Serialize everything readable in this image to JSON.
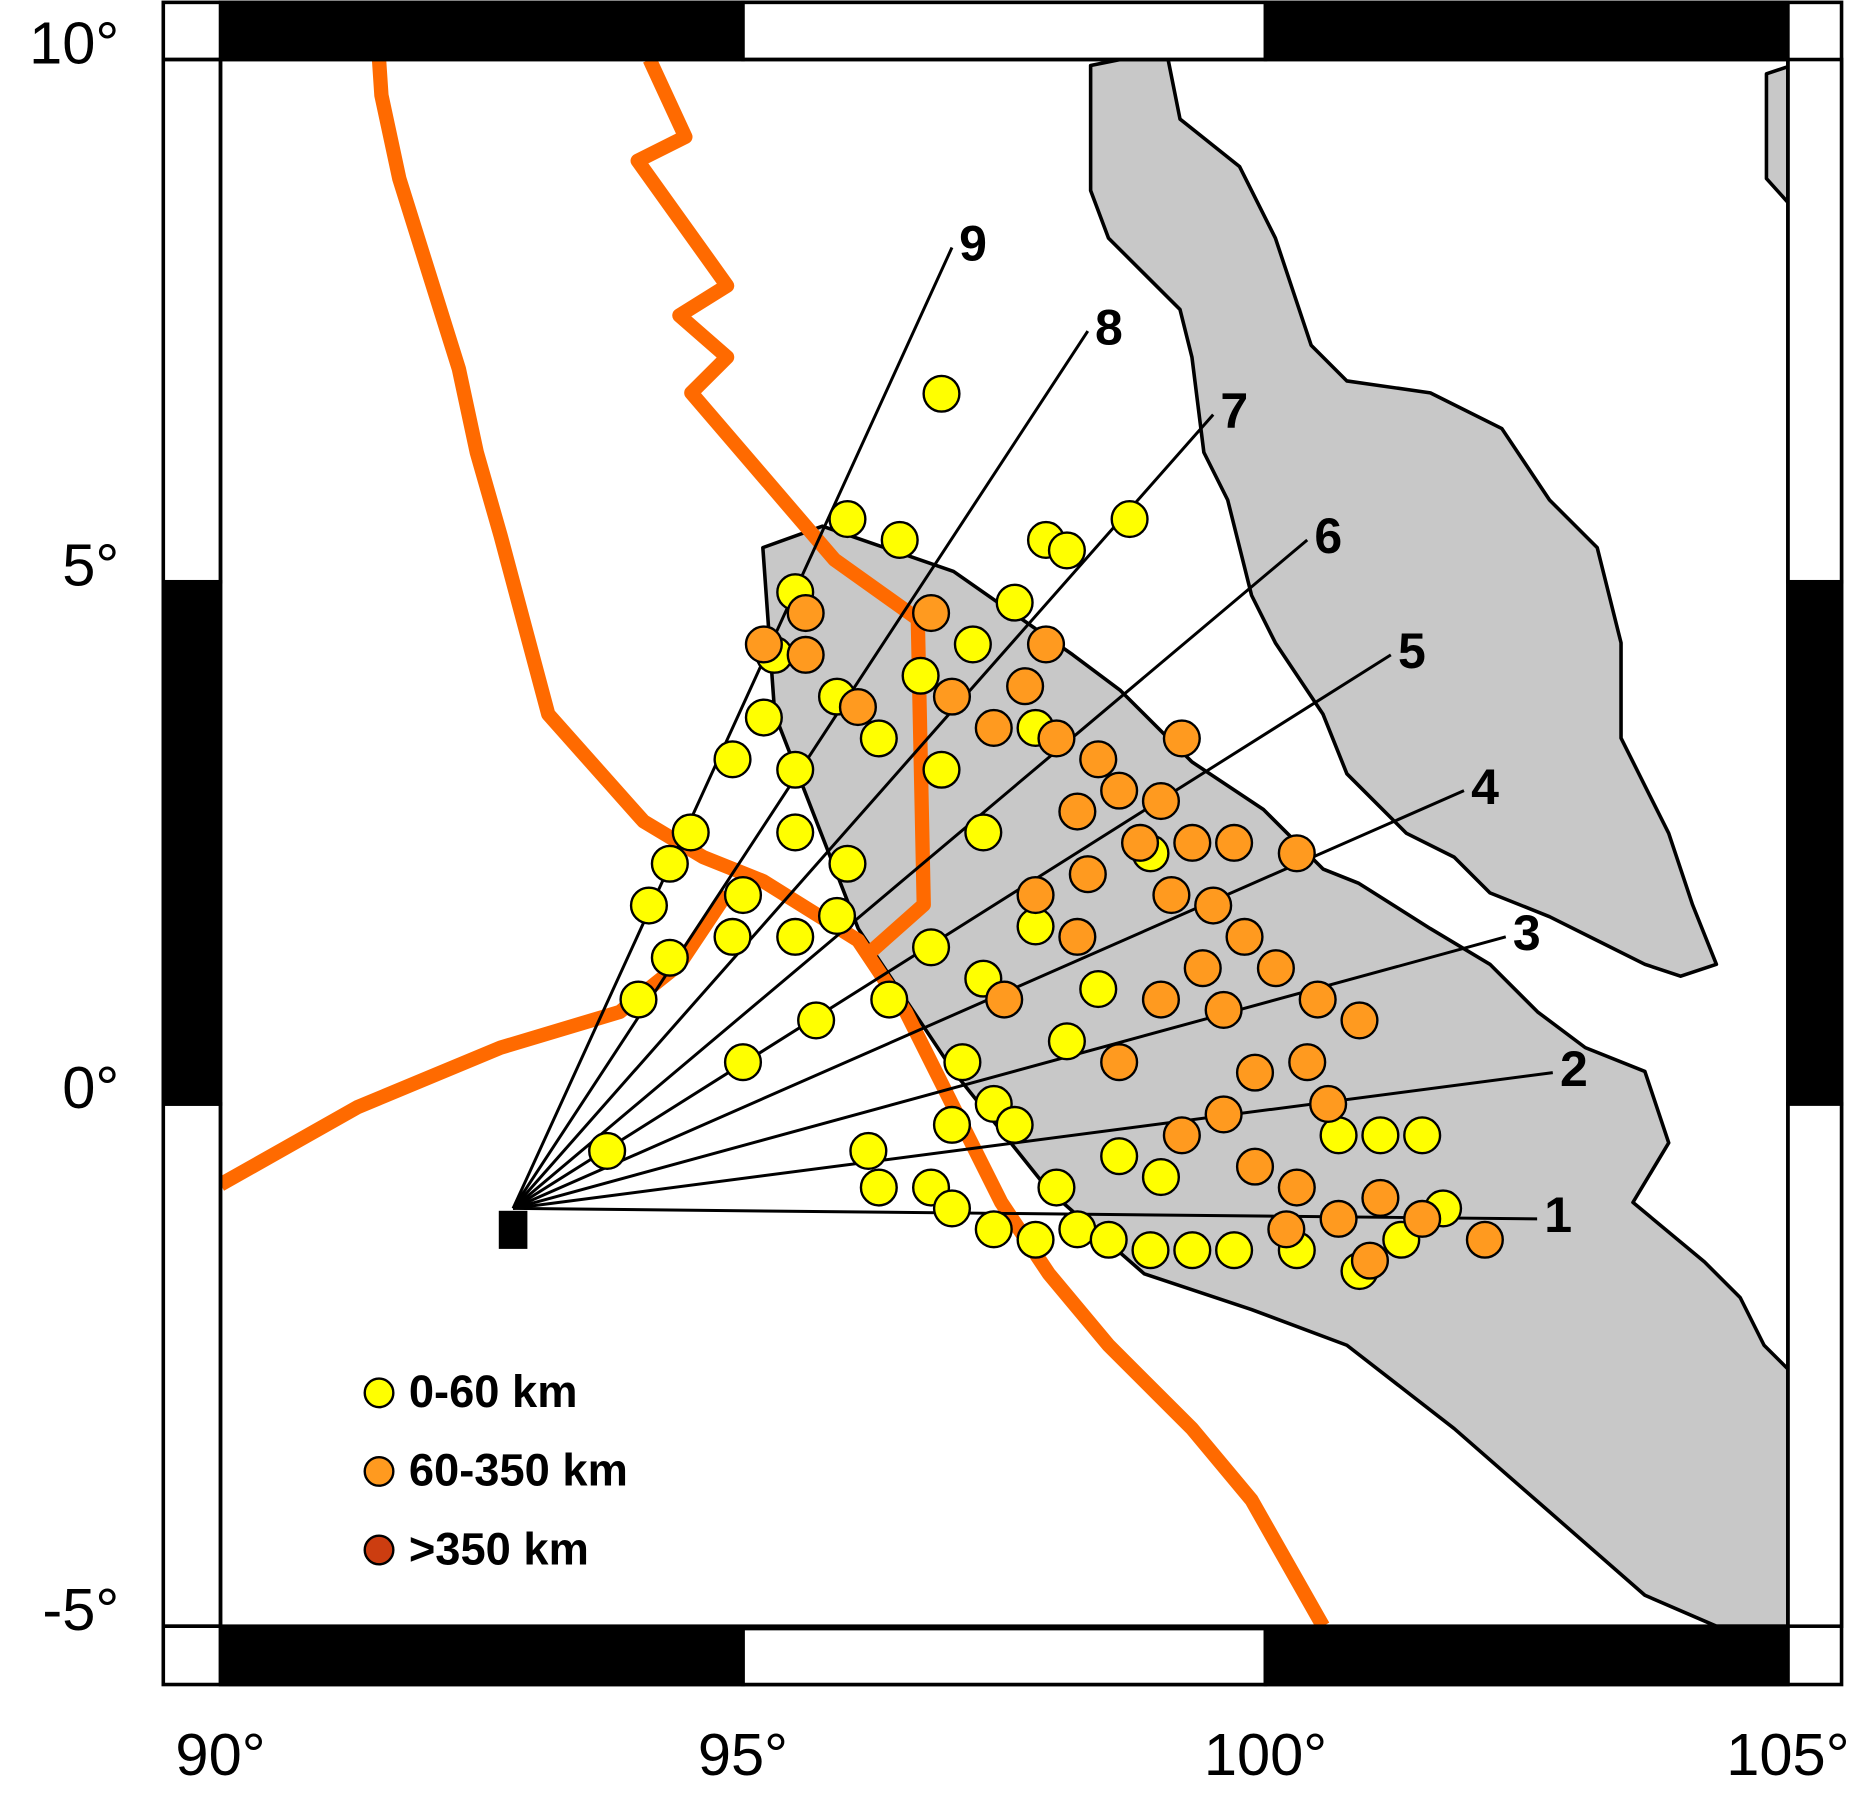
{
  "map": {
    "xlim": [
      90,
      105
    ],
    "ylim": [
      -5,
      10
    ],
    "xticks": [
      {
        "value": 90,
        "label": "90°"
      },
      {
        "value": 95,
        "label": "95°"
      },
      {
        "value": 100,
        "label": "100°"
      },
      {
        "value": 105,
        "label": "105°"
      }
    ],
    "yticks": [
      {
        "value": -5,
        "label": "-5°"
      },
      {
        "value": 0,
        "label": "0°"
      },
      {
        "value": 5,
        "label": "5°"
      },
      {
        "value": 10,
        "label": "10°"
      }
    ],
    "profile_origin": [
      92.8,
      -1.0
    ],
    "profiles": [
      {
        "label": "1",
        "end": [
          102.6,
          -1.1
        ]
      },
      {
        "label": "2",
        "end": [
          102.75,
          0.3
        ]
      },
      {
        "label": "3",
        "end": [
          102.3,
          1.6
        ]
      },
      {
        "label": "4",
        "end": [
          101.9,
          3.0
        ]
      },
      {
        "label": "5",
        "end": [
          101.2,
          4.3
        ]
      },
      {
        "label": "6",
        "end": [
          100.4,
          5.4
        ]
      },
      {
        "label": "7",
        "end": [
          99.5,
          6.6
        ]
      },
      {
        "label": "8",
        "end": [
          98.3,
          7.4
        ]
      },
      {
        "label": "9",
        "end": [
          97.0,
          8.2
        ]
      }
    ],
    "series": [
      {
        "name": "0-60 km",
        "color": "#ffff00",
        "points": [
          [
            96.9,
            6.8
          ],
          [
            98.7,
            5.6
          ],
          [
            96.0,
            5.6
          ],
          [
            96.5,
            5.4
          ],
          [
            97.9,
            5.4
          ],
          [
            98.1,
            5.3
          ],
          [
            95.5,
            4.9
          ],
          [
            95.3,
            4.3
          ],
          [
            95.2,
            3.7
          ],
          [
            95.5,
            3.2
          ],
          [
            94.9,
            3.3
          ],
          [
            94.5,
            2.6
          ],
          [
            94.3,
            2.3
          ],
          [
            94.1,
            1.9
          ],
          [
            94.3,
            1.4
          ],
          [
            94.0,
            1.0
          ],
          [
            95.0,
            2.0
          ],
          [
            95.5,
            2.6
          ],
          [
            95.9,
            3.9
          ],
          [
            96.3,
            3.5
          ],
          [
            96.0,
            2.3
          ],
          [
            95.9,
            1.8
          ],
          [
            95.5,
            1.6
          ],
          [
            94.9,
            1.6
          ],
          [
            95.0,
            0.4
          ],
          [
            93.7,
            -0.45
          ],
          [
            96.2,
            -0.45
          ],
          [
            96.3,
            -0.8
          ],
          [
            96.8,
            -0.8
          ],
          [
            97.0,
            -1.0
          ],
          [
            97.4,
            -1.2
          ],
          [
            97.8,
            -1.3
          ],
          [
            98.2,
            -1.2
          ],
          [
            98.5,
            -1.3
          ],
          [
            98.9,
            -1.4
          ],
          [
            99.3,
            -1.4
          ],
          [
            99.7,
            -1.4
          ],
          [
            100.3,
            -1.4
          ],
          [
            100.9,
            -1.6
          ],
          [
            101.3,
            -1.3
          ],
          [
            101.7,
            -1.0
          ],
          [
            101.5,
            -0.3
          ],
          [
            101.1,
            -0.3
          ],
          [
            100.7,
            -0.3
          ],
          [
            97.1,
            0.4
          ],
          [
            97.4,
            0.0
          ],
          [
            97.3,
            1.2
          ],
          [
            97.8,
            1.7
          ],
          [
            98.1,
            0.6
          ],
          [
            98.6,
            -0.5
          ],
          [
            99.0,
            -0.7
          ],
          [
            97.6,
            -0.2
          ],
          [
            97.0,
            -0.2
          ],
          [
            96.9,
            3.2
          ],
          [
            97.3,
            2.6
          ],
          [
            97.8,
            3.6
          ],
          [
            97.6,
            4.8
          ],
          [
            98.9,
            2.4
          ],
          [
            96.8,
            1.5
          ],
          [
            98.0,
            -0.8
          ],
          [
            96.4,
            1.0
          ],
          [
            95.7,
            0.8
          ],
          [
            96.7,
            4.1
          ],
          [
            97.2,
            4.4
          ],
          [
            98.4,
            1.1
          ]
        ]
      },
      {
        "name": "60-350 km",
        "color": "#ff9a1f",
        "points": [
          [
            95.6,
            4.7
          ],
          [
            95.2,
            4.4
          ],
          [
            95.6,
            4.3
          ],
          [
            96.1,
            3.8
          ],
          [
            96.8,
            4.7
          ],
          [
            97.0,
            3.9
          ],
          [
            97.4,
            3.6
          ],
          [
            97.7,
            4.0
          ],
          [
            98.0,
            3.5
          ],
          [
            98.4,
            3.3
          ],
          [
            98.6,
            3.0
          ],
          [
            98.8,
            2.5
          ],
          [
            99.0,
            2.9
          ],
          [
            99.2,
            3.5
          ],
          [
            99.3,
            2.5
          ],
          [
            99.1,
            2.0
          ],
          [
            99.5,
            1.9
          ],
          [
            99.8,
            1.6
          ],
          [
            99.7,
            2.5
          ],
          [
            100.3,
            2.4
          ],
          [
            99.4,
            1.3
          ],
          [
            99.0,
            1.0
          ],
          [
            99.6,
            0.9
          ],
          [
            100.1,
            1.3
          ],
          [
            100.5,
            1.0
          ],
          [
            100.9,
            0.8
          ],
          [
            100.4,
            0.4
          ],
          [
            99.9,
            0.3
          ],
          [
            100.6,
            0.0
          ],
          [
            99.6,
            -0.1
          ],
          [
            99.2,
            -0.3
          ],
          [
            99.9,
            -0.6
          ],
          [
            100.3,
            -0.8
          ],
          [
            100.7,
            -1.1
          ],
          [
            101.1,
            -0.9
          ],
          [
            101.5,
            -1.1
          ],
          [
            102.1,
            -1.3
          ],
          [
            101.0,
            -1.5
          ],
          [
            100.2,
            -1.2
          ],
          [
            98.3,
            2.2
          ],
          [
            97.8,
            2.0
          ],
          [
            98.2,
            1.6
          ],
          [
            98.6,
            0.4
          ],
          [
            97.5,
            1.0
          ],
          [
            97.9,
            4.4
          ],
          [
            98.2,
            2.8
          ]
        ]
      },
      {
        "name": ">350 km",
        "color": "#cc3d10",
        "points": []
      }
    ]
  }
}
